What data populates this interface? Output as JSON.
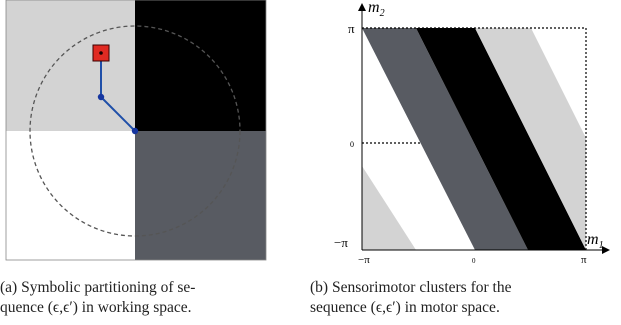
{
  "figure_a": {
    "caption_line1": "(a) Symbolic partitioning of se-",
    "caption_line2": "quence (ϵ,ϵ′) in working space.",
    "colors": {
      "quadrant_top_left": "#d3d3d3",
      "quadrant_top_right": "#000000",
      "quadrant_bottom_left": "#ffffff",
      "quadrant_bottom_right": "#585b62",
      "arm": "#1f4fa8",
      "joint": "#1636a0",
      "target": "#e02a22"
    }
  },
  "figure_b": {
    "caption_line1": "(b) Sensorimotor clusters for the",
    "caption_line2": "sequence (ϵ,ϵ′) in motor space.",
    "axes": {
      "y_label": "m",
      "y_label_sub": "2",
      "x_label": "m",
      "x_label_sub": "1",
      "y_tick_top": "π",
      "y_tick_mid": "0",
      "y_tick_bottom": "−π",
      "x_tick_left": "−π",
      "x_tick_mid": "0",
      "x_tick_right": "π"
    },
    "colors": {
      "band_light": "#d3d3d3",
      "band_dark_gray": "#585b62",
      "band_black": "#000000"
    }
  }
}
